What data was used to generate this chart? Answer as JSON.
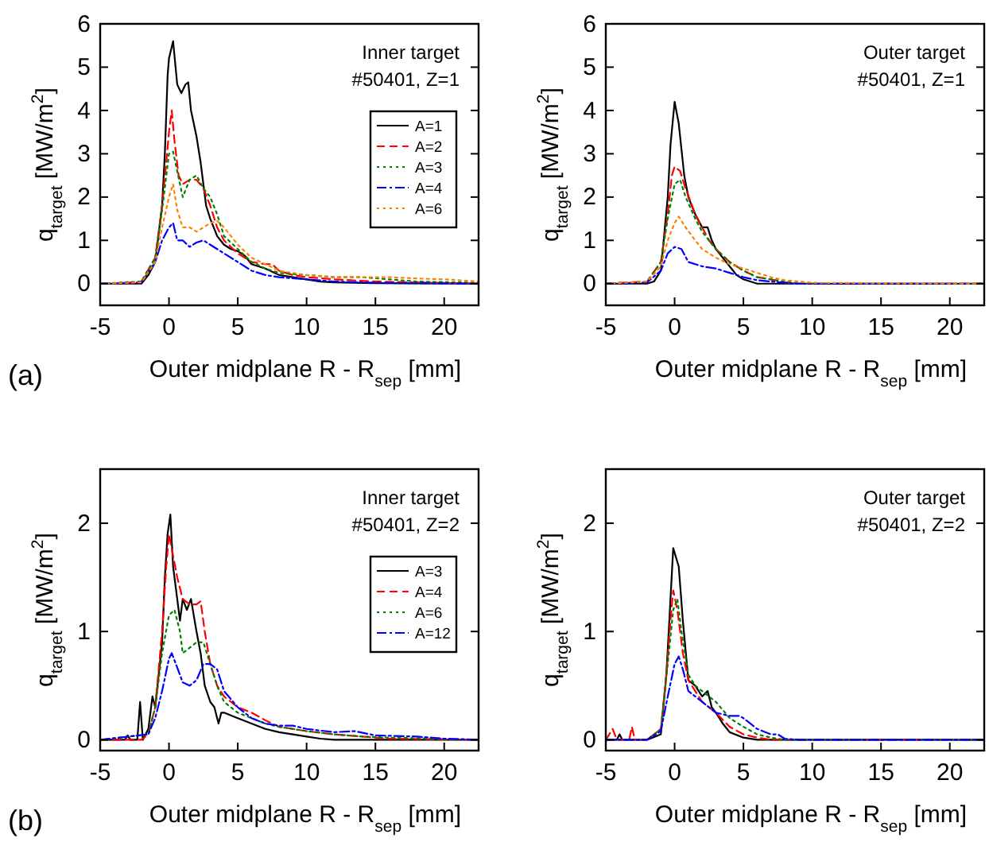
{
  "chart_data": [
    {
      "type": "line",
      "xlabel": "Outer midplane R - R$_{sep}$ [mm]",
      "ylabel": "q$_{target}$ [MW/m$^{2}$]",
      "annotations": [
        "Inner target",
        "#50401, Z=1",
        "(a)"
      ],
      "xlim": [
        -5,
        22.5
      ],
      "xticks": [
        -5,
        0,
        5,
        10,
        15,
        20
      ],
      "ylim": [
        -0.5,
        6
      ],
      "yticks": [
        0,
        1,
        2,
        3,
        4,
        5,
        6
      ],
      "legend": "right",
      "series": [
        {
          "name": "A=1",
          "color": "#000000",
          "line_style": "solid",
          "x": [
            -5,
            -2.5,
            -2,
            -1.5,
            -1,
            -0.5,
            -0.3,
            -0.1,
            0,
            0.3,
            0.6,
            0.9,
            1.2,
            1.4,
            1.6,
            2,
            2.3,
            2.7,
            3,
            3.5,
            4,
            4.5,
            5,
            5.5,
            6,
            7,
            8,
            9,
            10,
            11,
            12,
            15,
            22.5
          ],
          "values": [
            0,
            0,
            0,
            0.2,
            0.5,
            1.8,
            3.0,
            4.8,
            5.2,
            5.6,
            4.6,
            4.4,
            4.6,
            4.65,
            4.0,
            3.4,
            2.8,
            1.8,
            1.5,
            1.1,
            0.9,
            0.8,
            0.75,
            0.65,
            0.45,
            0.35,
            0.2,
            0.15,
            0.1,
            0.05,
            0.03,
            0.01,
            0
          ]
        },
        {
          "name": "A=2",
          "color": "#ff0000",
          "line_style": "dashed",
          "x": [
            -5,
            -3,
            -2,
            -1,
            -0.5,
            -0.2,
            0,
            0.2,
            0.4,
            0.7,
            1,
            1.5,
            2,
            2.5,
            3,
            3.5,
            4,
            5,
            6,
            7,
            7.5,
            8,
            9,
            10,
            12,
            15,
            18,
            22.5
          ],
          "values": [
            0,
            0.02,
            0.05,
            0.6,
            1.8,
            2.8,
            3.5,
            4.0,
            3.3,
            2.5,
            2.3,
            2.4,
            2.4,
            2.2,
            1.8,
            1.3,
            1.0,
            0.7,
            0.5,
            0.45,
            0.45,
            0.3,
            0.2,
            0.15,
            0.1,
            0.05,
            0.03,
            0
          ]
        },
        {
          "name": "A=3",
          "color": "#008000",
          "line_style": "dotted",
          "x": [
            -5,
            -2,
            -1,
            -0.5,
            0,
            0.3,
            0.6,
            1,
            1.5,
            2,
            2.5,
            3,
            3.5,
            4,
            5,
            6,
            7,
            8,
            10,
            12,
            14,
            16,
            18,
            22.5
          ],
          "values": [
            0,
            0.05,
            0.6,
            1.7,
            3.0,
            3.05,
            2.6,
            2.0,
            2.4,
            2.5,
            2.2,
            2.0,
            1.6,
            1.1,
            0.8,
            0.5,
            0.35,
            0.25,
            0.2,
            0.15,
            0.15,
            0.1,
            0.05,
            0.02
          ]
        },
        {
          "name": "A=4",
          "color": "#0000ff",
          "line_style": "dashdot",
          "x": [
            -5,
            -2,
            -1,
            -0.5,
            0,
            0.3,
            0.6,
            1,
            1.5,
            2,
            2.5,
            3,
            3.5,
            4,
            5,
            6,
            7,
            8,
            10,
            12,
            15,
            22.5
          ],
          "values": [
            0,
            0.03,
            0.5,
            1.0,
            1.3,
            1.4,
            1.0,
            1.0,
            0.85,
            0.95,
            1.0,
            0.9,
            0.8,
            0.7,
            0.5,
            0.3,
            0.2,
            0.15,
            0.1,
            0.05,
            0.02,
            0
          ]
        },
        {
          "name": "A=6",
          "color": "#ff8000",
          "line_style": "dotted",
          "x": [
            -5,
            -2,
            -1,
            -0.5,
            0,
            0.3,
            0.6,
            1,
            1.5,
            2,
            2.5,
            3,
            3.5,
            4,
            5,
            6,
            7,
            8,
            10,
            12,
            14,
            16,
            18,
            20,
            22.5
          ],
          "values": [
            0,
            0.03,
            0.5,
            1.3,
            2.0,
            2.3,
            1.7,
            1.3,
            1.3,
            1.2,
            1.3,
            1.4,
            1.45,
            1.3,
            0.9,
            0.6,
            0.45,
            0.3,
            0.2,
            0.15,
            0.15,
            0.15,
            0.12,
            0.1,
            0.05
          ]
        }
      ]
    },
    {
      "type": "line",
      "xlabel": "Outer midplane R - R$_{sep}$ [mm]",
      "ylabel": "q$_{target}$ [MW/m$^{2}$]",
      "annotations": [
        "Outer target",
        "#50401, Z=1"
      ],
      "xlim": [
        -5,
        22.5
      ],
      "xticks": [
        -5,
        0,
        5,
        10,
        15,
        20
      ],
      "ylim": [
        -0.5,
        6
      ],
      "yticks": [
        0,
        1,
        2,
        3,
        4,
        5,
        6
      ],
      "series": [
        {
          "color": "#000000",
          "line_style": "solid",
          "x": [
            -5,
            -2,
            -1.5,
            -1,
            -0.5,
            -0.3,
            0,
            0.3,
            0.7,
            1,
            1.5,
            2,
            2.4,
            2.7,
            3,
            3.5,
            4,
            4.5,
            5,
            5.5,
            6,
            22.5
          ],
          "values": [
            0,
            0,
            0.05,
            0.3,
            2.0,
            3.2,
            4.2,
            3.7,
            2.5,
            2.0,
            1.6,
            1.3,
            1.3,
            1.0,
            0.8,
            0.6,
            0.4,
            0.2,
            0.1,
            0.05,
            0,
            0
          ]
        },
        {
          "color": "#ff0000",
          "line_style": "dashed",
          "x": [
            -5,
            -2,
            -1,
            -0.5,
            -0.2,
            0,
            0.4,
            0.8,
            1.5,
            2,
            2.5,
            3,
            4,
            5,
            6,
            7,
            8,
            9,
            22.5
          ],
          "values": [
            0,
            0.05,
            0.5,
            1.6,
            2.5,
            2.7,
            2.6,
            2.2,
            1.6,
            1.3,
            1.0,
            0.8,
            0.5,
            0.3,
            0.15,
            0.1,
            0.03,
            0,
            0
          ]
        },
        {
          "color": "#008000",
          "line_style": "dotted",
          "x": [
            -5,
            -2,
            -1,
            -0.5,
            0,
            0.4,
            0.8,
            1.5,
            2,
            3,
            4,
            5,
            6,
            7,
            8,
            9,
            22.5
          ],
          "values": [
            0,
            0.05,
            0.5,
            1.5,
            2.3,
            2.4,
            2.0,
            1.5,
            1.2,
            0.8,
            0.5,
            0.3,
            0.15,
            0.1,
            0.05,
            0,
            0
          ]
        },
        {
          "color": "#0000ff",
          "line_style": "dashdot",
          "x": [
            -5,
            -2,
            -1,
            -0.5,
            0,
            0.5,
            1,
            1.5,
            2,
            3,
            4,
            5,
            6,
            7,
            8,
            9,
            22.5
          ],
          "values": [
            0,
            0.03,
            0.3,
            0.7,
            0.85,
            0.8,
            0.5,
            0.45,
            0.4,
            0.35,
            0.25,
            0.15,
            0.08,
            0.05,
            0.02,
            0,
            0
          ]
        },
        {
          "color": "#ff8000",
          "line_style": "dotted",
          "x": [
            -5,
            -2,
            -1,
            -0.5,
            0,
            0.3,
            0.8,
            1.5,
            2,
            3,
            4,
            5,
            6,
            7,
            8,
            9,
            10,
            22.5
          ],
          "values": [
            0,
            0.05,
            0.4,
            1.0,
            1.4,
            1.55,
            1.3,
            1.0,
            0.8,
            0.6,
            0.45,
            0.35,
            0.25,
            0.15,
            0.08,
            0.05,
            0.02,
            0
          ]
        }
      ]
    },
    {
      "type": "line",
      "xlabel": "Outer midplane R - R$_{sep}$ [mm]",
      "ylabel": "q$_{target}$ [MW/m$^{2}$]",
      "annotations": [
        "Inner target",
        "#50401, Z=2",
        "(b)"
      ],
      "xlim": [
        -5,
        22.5
      ],
      "xticks": [
        -5,
        0,
        5,
        10,
        15,
        20
      ],
      "ylim": [
        -0.1,
        2.5
      ],
      "yticks": [
        0,
        1,
        2
      ],
      "legend": "right",
      "series": [
        {
          "name": "A=3",
          "color": "#000000",
          "line_style": "solid",
          "x": [
            -5,
            -3.2,
            -3,
            -2.8,
            -2.3,
            -2.1,
            -1.9,
            -1.5,
            -1.2,
            -1,
            -0.5,
            -0.3,
            -0.1,
            0.1,
            0.3,
            0.6,
            0.8,
            1,
            1.3,
            1.6,
            2,
            2.3,
            2.6,
            3,
            3.3,
            3.6,
            3.8,
            4,
            5,
            6,
            7,
            8,
            9,
            10,
            11,
            12,
            22.5
          ],
          "values": [
            0,
            0,
            0.04,
            0,
            0,
            0.35,
            0,
            0.1,
            0.4,
            0.3,
            0.9,
            1.5,
            1.9,
            2.08,
            1.6,
            1.3,
            1.1,
            1.3,
            1.2,
            1.3,
            1.0,
            0.8,
            0.5,
            0.35,
            0.3,
            0.15,
            0.25,
            0.25,
            0.2,
            0.15,
            0.1,
            0.07,
            0.05,
            0.03,
            0.01,
            0,
            0
          ]
        },
        {
          "name": "A=4",
          "color": "#ff0000",
          "line_style": "dashed",
          "x": [
            -5,
            -2,
            -1.5,
            -1,
            -0.5,
            -0.2,
            0,
            0.3,
            0.6,
            1,
            1.5,
            2,
            2.3,
            2.6,
            3,
            3.5,
            4,
            4.5,
            5,
            6,
            7,
            8,
            9,
            10,
            12,
            14,
            16,
            22.5
          ],
          "values": [
            0,
            0,
            0.05,
            0.3,
            1.0,
            1.6,
            1.9,
            1.7,
            1.5,
            1.3,
            1.25,
            1.25,
            1.28,
            1.0,
            0.7,
            0.5,
            0.4,
            0.35,
            0.3,
            0.25,
            0.18,
            0.12,
            0.1,
            0.08,
            0.05,
            0.03,
            0.01,
            0
          ]
        },
        {
          "name": "A=6",
          "color": "#008000",
          "line_style": "dotted",
          "x": [
            -5,
            -1.5,
            -1,
            -0.5,
            0,
            0.4,
            0.8,
            1,
            1.5,
            2,
            2.5,
            3,
            3.5,
            4,
            5,
            6,
            7,
            8,
            10,
            12,
            14,
            16,
            22.5
          ],
          "values": [
            0,
            0.05,
            0.3,
            0.8,
            1.15,
            1.2,
            1.0,
            0.8,
            0.85,
            0.9,
            0.9,
            0.7,
            0.5,
            0.35,
            0.25,
            0.2,
            0.15,
            0.12,
            0.08,
            0.05,
            0.03,
            0.02,
            0
          ]
        },
        {
          "name": "A=12",
          "color": "#0000ff",
          "line_style": "dashdot",
          "x": [
            -5,
            -1.5,
            -1,
            -0.5,
            0,
            0.2,
            0.5,
            1,
            1.5,
            2,
            2.5,
            3,
            3.5,
            4,
            5,
            6,
            7,
            8,
            9,
            10,
            12,
            13.5,
            15,
            18,
            20,
            22.5
          ],
          "values": [
            0,
            0.05,
            0.2,
            0.45,
            0.75,
            0.8,
            0.7,
            0.53,
            0.5,
            0.55,
            0.7,
            0.7,
            0.65,
            0.45,
            0.3,
            0.2,
            0.15,
            0.13,
            0.13,
            0.1,
            0.07,
            0.08,
            0.04,
            0.03,
            0.01,
            0
          ]
        }
      ]
    },
    {
      "type": "line",
      "xlabel": "Outer midplane R - R$_{sep}$ [mm]",
      "ylabel": "q$_{target}$ [MW/m$^{2}$]",
      "annotations": [
        "Outer target",
        "#50401, Z=2"
      ],
      "xlim": [
        -5,
        22.5
      ],
      "xticks": [
        -5,
        0,
        5,
        10,
        15,
        20
      ],
      "ylim": [
        -0.1,
        2.5
      ],
      "yticks": [
        0,
        1,
        2
      ],
      "series": [
        {
          "color": "#000000",
          "line_style": "solid",
          "x": [
            -5,
            -4.2,
            -4,
            -3.8,
            -2,
            -1,
            -0.6,
            -0.3,
            -0.1,
            0.3,
            0.6,
            1,
            1.5,
            2,
            2.4,
            2.7,
            3,
            3.5,
            4,
            5,
            6,
            22.5
          ],
          "values": [
            0,
            0,
            0.05,
            0,
            0,
            0.05,
            0.6,
            1.3,
            1.77,
            1.6,
            1.1,
            0.55,
            0.5,
            0.4,
            0.45,
            0.3,
            0.25,
            0.15,
            0.07,
            0.02,
            0,
            0
          ]
        },
        {
          "color": "#ff0000",
          "line_style": "dashed",
          "x": [
            -5,
            -4.5,
            -4.2,
            -3.3,
            -3.1,
            -2.9,
            -2,
            -1,
            -0.6,
            -0.3,
            -0.1,
            0.2,
            0.6,
            1,
            1.5,
            2,
            3,
            4,
            5,
            6,
            7,
            22.5
          ],
          "values": [
            0,
            0.1,
            0,
            0,
            0.12,
            0,
            0,
            0.1,
            0.6,
            1.1,
            1.38,
            1.2,
            0.8,
            0.55,
            0.45,
            0.35,
            0.25,
            0.12,
            0.05,
            0.02,
            0,
            0
          ]
        },
        {
          "color": "#008000",
          "line_style": "dotted",
          "x": [
            -5,
            -2,
            -1,
            -0.5,
            -0.1,
            0.2,
            0.5,
            1,
            1.5,
            2,
            3,
            4,
            5,
            6,
            7,
            8,
            22.5
          ],
          "values": [
            0,
            0,
            0.1,
            0.7,
            1.2,
            1.3,
            1.0,
            0.6,
            0.5,
            0.45,
            0.35,
            0.2,
            0.12,
            0.05,
            0.02,
            0,
            0
          ]
        },
        {
          "color": "#0000ff",
          "line_style": "dashdot",
          "x": [
            -5,
            -2,
            -1,
            -0.5,
            0,
            0.3,
            0.6,
            1,
            1.5,
            2,
            3,
            4,
            4.7,
            5,
            6,
            7,
            7.5,
            8,
            9,
            22.5
          ],
          "values": [
            0,
            0,
            0.08,
            0.4,
            0.7,
            0.77,
            0.65,
            0.45,
            0.4,
            0.35,
            0.25,
            0.22,
            0.22,
            0.2,
            0.1,
            0.05,
            0.05,
            0.01,
            0,
            0
          ]
        }
      ]
    }
  ]
}
